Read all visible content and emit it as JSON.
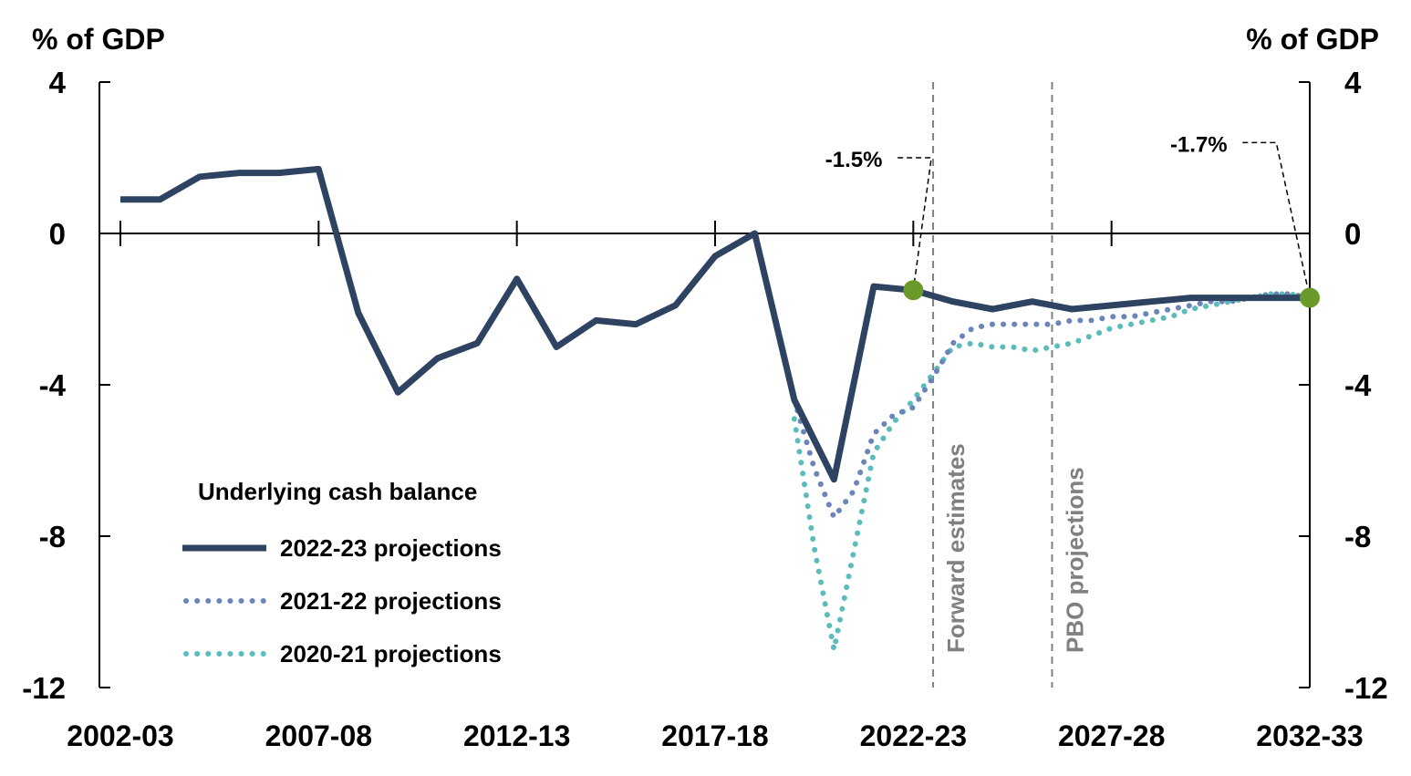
{
  "chart_data": {
    "type": "line",
    "title": "",
    "ylabel_left": "% of GDP",
    "ylabel_right": "% of GDP",
    "ylim": [
      -12,
      4
    ],
    "yticks": [
      4,
      0,
      -4,
      -8,
      -12
    ],
    "xlim": [
      2002,
      2032
    ],
    "xtick_labels": [
      "2002-03",
      "2007-08",
      "2012-13",
      "2017-18",
      "2022-23",
      "2027-28",
      "2032-33"
    ],
    "xtick_years": [
      2002,
      2007,
      2012,
      2017,
      2022,
      2027,
      2032
    ],
    "legend_title": "Underlying cash balance",
    "legend_position": "bottom-left",
    "series": [
      {
        "name": "2022-23 projections",
        "color": "#2e4262",
        "style": "solid",
        "x": [
          2002,
          2003,
          2004,
          2005,
          2006,
          2007,
          2008,
          2009,
          2010,
          2011,
          2012,
          2013,
          2014,
          2015,
          2016,
          2017,
          2018,
          2019,
          2020,
          2021,
          2022,
          2023,
          2024,
          2025,
          2026,
          2027,
          2028,
          2029,
          2030,
          2031,
          2032
        ],
        "y": [
          0.9,
          0.9,
          1.5,
          1.6,
          1.6,
          1.7,
          -2.1,
          -4.2,
          -3.3,
          -2.9,
          -1.2,
          -3.0,
          -2.3,
          -2.4,
          -1.9,
          -0.6,
          0.0,
          -4.4,
          -6.5,
          -1.4,
          -1.5,
          -1.8,
          -2.0,
          -1.8,
          -2.0,
          -1.9,
          -1.8,
          -1.7,
          -1.7,
          -1.7,
          -1.7
        ]
      },
      {
        "name": "2021-22 projections",
        "color": "#6b85b8",
        "style": "dotted",
        "x": [
          2019,
          2019.5,
          2020,
          2020.5,
          2021,
          2021.5,
          2022,
          2022.5,
          2023,
          2023.5,
          2024,
          2024.5,
          2025,
          2025.5,
          2026,
          2026.5,
          2027,
          2027.5,
          2028,
          2028.5,
          2029,
          2029.5,
          2030,
          2030.5,
          2031,
          2031.5,
          2032
        ],
        "y": [
          -4.4,
          -6.2,
          -7.5,
          -6.8,
          -5.3,
          -4.8,
          -4.6,
          -3.8,
          -2.9,
          -2.5,
          -2.4,
          -2.4,
          -2.4,
          -2.4,
          -2.3,
          -2.3,
          -2.2,
          -2.2,
          -2.1,
          -2.0,
          -1.9,
          -1.8,
          -1.8,
          -1.7,
          -1.6,
          -1.6,
          -1.7
        ]
      },
      {
        "name": "2020-21 projections",
        "color": "#5bbcbb",
        "style": "dotted",
        "x": [
          2019,
          2019.5,
          2020,
          2020.5,
          2021,
          2021.5,
          2022,
          2022.5,
          2023,
          2023.5,
          2024,
          2024.5,
          2025,
          2025.5,
          2026,
          2026.5,
          2027,
          2027.5,
          2028,
          2028.5,
          2029,
          2029.5,
          2030,
          2030.5,
          2031,
          2031.5,
          2032
        ],
        "y": [
          -4.9,
          -8.3,
          -11.0,
          -8.4,
          -5.8,
          -5.0,
          -4.4,
          -3.7,
          -3.0,
          -2.9,
          -3.0,
          -3.0,
          -3.1,
          -3.0,
          -2.9,
          -2.7,
          -2.5,
          -2.4,
          -2.3,
          -2.2,
          -2.0,
          -1.9,
          -1.8,
          -1.7,
          -1.6,
          -1.6,
          -1.7
        ]
      }
    ],
    "vertical_lines": [
      {
        "x": 2022.5,
        "label": "Forward estimates"
      },
      {
        "x": 2025.5,
        "label": "PBO projections"
      }
    ],
    "annotations": [
      {
        "label": "-1.5%",
        "x": 2022,
        "y": -1.5,
        "label_x": 2020.5,
        "label_y": 2.0
      },
      {
        "label": "-1.7%",
        "x": 2032,
        "y": -1.7,
        "label_x": 2029.2,
        "label_y": 2.4
      }
    ],
    "marker_color": "#6a9a2a"
  }
}
